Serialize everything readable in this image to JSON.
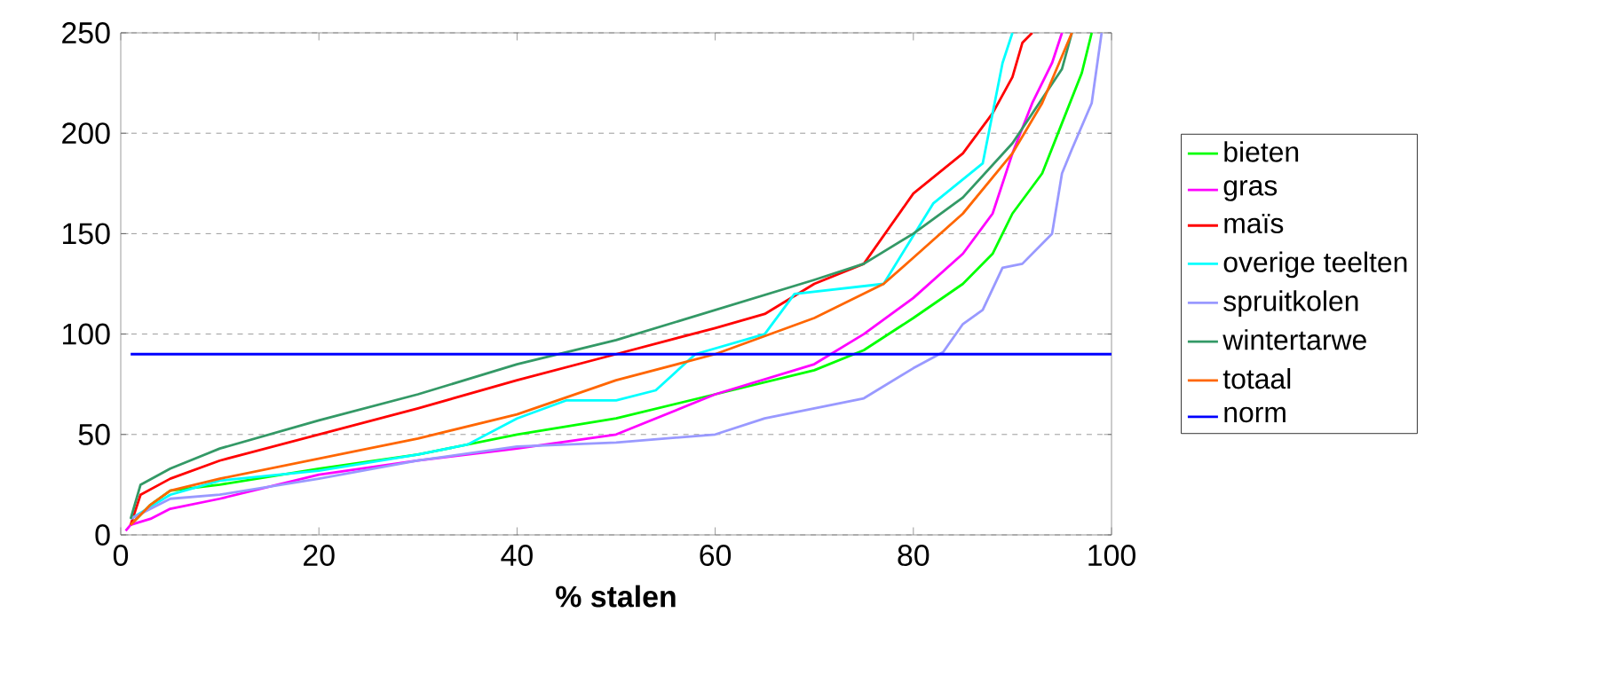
{
  "chart_data": {
    "type": "line",
    "xlabel": "**% stalen**",
    "xlim": [
      0,
      100
    ],
    "ylim": [
      0,
      250
    ],
    "xticks": [
      0,
      20,
      40,
      60,
      80,
      100
    ],
    "yticks": [
      0,
      50,
      100,
      150,
      200,
      250
    ],
    "grid": "y",
    "legend": "right",
    "line_style": "solid",
    "marker": "none",
    "series": [
      {
        "name": "bieten",
        "color": "#00ff00",
        "x": [
          1,
          3,
          5,
          10,
          20,
          30,
          40,
          50,
          60,
          70,
          75,
          80,
          85,
          88,
          90,
          93,
          95,
          97,
          98
        ],
        "values": [
          5,
          15,
          22,
          25,
          33,
          40,
          50,
          58,
          70,
          82,
          92,
          108,
          125,
          140,
          160,
          180,
          205,
          230,
          250
        ]
      },
      {
        "name": "gras",
        "color": "#ff00ff",
        "x": [
          0.5,
          1,
          3,
          5,
          10,
          20,
          30,
          40,
          50,
          60,
          70,
          75,
          80,
          85,
          88,
          90,
          92,
          94,
          95
        ],
        "values": [
          2,
          5,
          8,
          13,
          18,
          30,
          37,
          43,
          50,
          70,
          85,
          100,
          118,
          140,
          160,
          190,
          215,
          235,
          250
        ]
      },
      {
        "name": "maïs",
        "color": "#ff0000",
        "x": [
          1,
          2,
          5,
          10,
          20,
          30,
          40,
          50,
          60,
          65,
          70,
          75,
          80,
          85,
          88,
          90,
          91,
          92
        ],
        "values": [
          5,
          20,
          28,
          37,
          50,
          63,
          77,
          90,
          103,
          110,
          125,
          135,
          170,
          190,
          210,
          228,
          245,
          250
        ]
      },
      {
        "name": "overige teelten",
        "color": "#00ffff",
        "x": [
          1,
          5,
          10,
          20,
          30,
          35,
          40,
          45,
          50,
          54,
          58,
          65,
          68,
          77,
          82,
          87,
          89,
          90
        ],
        "values": [
          8,
          20,
          27,
          32,
          40,
          45,
          58,
          67,
          67,
          72,
          90,
          100,
          120,
          125,
          165,
          185,
          235,
          250
        ]
      },
      {
        "name": "spruitkolen",
        "color": "#9999ff",
        "x": [
          1,
          5,
          10,
          20,
          30,
          40,
          50,
          60,
          65,
          70,
          75,
          80,
          83,
          85,
          87,
          89,
          91,
          94,
          95,
          96,
          98,
          99
        ],
        "values": [
          8,
          18,
          20,
          28,
          37,
          44,
          46,
          50,
          58,
          63,
          68,
          83,
          91,
          105,
          112,
          133,
          135,
          150,
          180,
          192,
          215,
          250
        ]
      },
      {
        "name": "wintertarwe",
        "color": "#339966",
        "x": [
          1,
          2,
          5,
          10,
          20,
          30,
          40,
          50,
          60,
          70,
          75,
          80,
          85,
          90,
          95,
          96
        ],
        "values": [
          8,
          25,
          33,
          43,
          57,
          70,
          85,
          97,
          112,
          127,
          135,
          150,
          168,
          195,
          232,
          250
        ]
      },
      {
        "name": "totaal",
        "color": "#ff6600",
        "x": [
          1,
          3,
          5,
          10,
          20,
          30,
          40,
          50,
          60,
          70,
          77,
          80,
          85,
          90,
          93,
          96
        ],
        "values": [
          5,
          15,
          22,
          28,
          38,
          48,
          60,
          77,
          90,
          108,
          125,
          138,
          160,
          190,
          215,
          250
        ]
      },
      {
        "name": "norm",
        "color": "#0000ff",
        "x": [
          1,
          100
        ],
        "values": [
          90,
          90
        ]
      }
    ]
  }
}
